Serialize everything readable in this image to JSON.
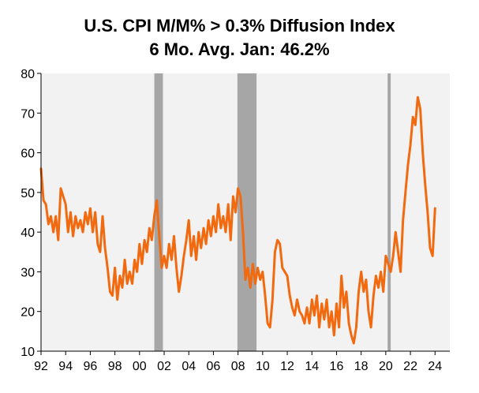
{
  "chart_data": {
    "type": "line",
    "title": "U.S. CPI M/M% > 0.3% Diffusion Index",
    "subtitle": "6 Mo. Avg. Jan: 46.2%",
    "xlabel": "",
    "ylabel": "",
    "ylim": [
      10,
      80
    ],
    "xlim": [
      1992,
      2025.2
    ],
    "yticks": [
      "80",
      "70",
      "60",
      "50",
      "40",
      "30",
      "20",
      "10"
    ],
    "xticks": [
      {
        "label": "92",
        "value": 1992
      },
      {
        "label": "94",
        "value": 1994
      },
      {
        "label": "96",
        "value": 1996
      },
      {
        "label": "98",
        "value": 1998
      },
      {
        "label": "00",
        "value": 2000
      },
      {
        "label": "02",
        "value": 2002
      },
      {
        "label": "04",
        "value": 2004
      },
      {
        "label": "06",
        "value": 2006
      },
      {
        "label": "08",
        "value": 2008
      },
      {
        "label": "10",
        "value": 2010
      },
      {
        "label": "12",
        "value": 2012
      },
      {
        "label": "14",
        "value": 2014
      },
      {
        "label": "16",
        "value": 2016
      },
      {
        "label": "18",
        "value": 2018
      },
      {
        "label": "20",
        "value": 2020
      },
      {
        "label": "22",
        "value": 2022
      },
      {
        "label": "24",
        "value": 2024
      }
    ],
    "recessions": [
      [
        2001.2,
        2001.9
      ],
      [
        2007.95,
        2009.5
      ],
      [
        2020.15,
        2020.4
      ]
    ],
    "grid": false,
    "colors": {
      "line": "#f26a10",
      "recession": "#a6a6a6",
      "plot_bg": "#f2f2f2"
    },
    "series": [
      {
        "x": [
          1992.0,
          1992.2,
          1992.4,
          1992.6,
          1992.8,
          1993.0,
          1993.2,
          1993.4,
          1993.6,
          1993.8,
          1994.0,
          1994.2,
          1994.4,
          1994.6,
          1994.8,
          1995.0,
          1995.2,
          1995.4,
          1995.6,
          1995.8,
          1996.0,
          1996.2,
          1996.4,
          1996.6,
          1996.8,
          1997.0,
          1997.2,
          1997.4,
          1997.6,
          1997.8,
          1998.0,
          1998.2,
          1998.4,
          1998.6,
          1998.8,
          1999.0,
          1999.2,
          1999.4,
          1999.6,
          1999.8,
          2000.0,
          2000.2,
          2000.4,
          2000.6,
          2000.8,
          2001.0,
          2001.2,
          2001.4,
          2001.6,
          2001.8,
          2002.0,
          2002.2,
          2002.4,
          2002.6,
          2002.8,
          2003.0,
          2003.2,
          2003.4,
          2003.6,
          2003.8,
          2004.0,
          2004.2,
          2004.4,
          2004.6,
          2004.8,
          2005.0,
          2005.2,
          2005.4,
          2005.6,
          2005.8,
          2006.0,
          2006.2,
          2006.4,
          2006.6,
          2006.8,
          2007.0,
          2007.2,
          2007.4,
          2007.6,
          2007.8,
          2008.0,
          2008.2,
          2008.4,
          2008.6,
          2008.8,
          2009.0,
          2009.2,
          2009.4,
          2009.6,
          2009.8,
          2010.0,
          2010.2,
          2010.4,
          2010.6,
          2010.8,
          2011.0,
          2011.2,
          2011.4,
          2011.6,
          2011.8,
          2012.0,
          2012.2,
          2012.4,
          2012.6,
          2012.8,
          2013.0,
          2013.2,
          2013.4,
          2013.6,
          2013.8,
          2014.0,
          2014.2,
          2014.4,
          2014.6,
          2014.8,
          2015.0,
          2015.2,
          2015.4,
          2015.6,
          2015.8,
          2016.0,
          2016.2,
          2016.4,
          2016.6,
          2016.8,
          2017.0,
          2017.2,
          2017.4,
          2017.6,
          2017.8,
          2018.0,
          2018.2,
          2018.4,
          2018.6,
          2018.8,
          2019.0,
          2019.2,
          2019.4,
          2019.6,
          2019.8,
          2020.0,
          2020.2,
          2020.4,
          2020.6,
          2020.8,
          2021.0,
          2021.2,
          2021.4,
          2021.6,
          2021.8,
          2022.0,
          2022.2,
          2022.4,
          2022.6,
          2022.8,
          2023.0,
          2023.2,
          2023.4,
          2023.6,
          2023.8,
          2024.0
        ],
        "values": [
          56,
          48,
          47,
          42,
          44,
          40,
          44,
          38,
          51,
          49,
          47,
          40,
          45,
          39,
          44,
          41,
          43,
          40,
          45,
          42,
          46,
          40,
          45,
          37,
          35,
          44,
          36,
          31,
          25,
          24,
          31,
          23,
          29,
          26,
          33,
          27,
          30,
          27,
          33,
          30,
          37,
          32,
          38,
          35,
          41,
          38,
          44,
          48,
          39,
          31,
          34,
          31,
          37,
          33,
          39,
          31,
          25,
          29,
          34,
          38,
          43,
          34,
          39,
          33,
          40,
          36,
          41,
          37,
          43,
          39,
          44,
          40,
          47,
          41,
          44,
          40,
          47,
          38,
          49,
          45,
          51,
          49,
          40,
          28,
          31,
          26,
          32,
          27,
          31,
          28,
          30,
          24,
          17,
          16,
          23,
          35,
          38,
          37,
          31,
          30,
          29,
          24,
          21,
          19,
          23,
          20,
          19,
          17,
          21,
          17,
          23,
          19,
          24,
          16,
          22,
          18,
          23,
          16,
          20,
          14,
          22,
          16,
          29,
          21,
          25,
          17,
          14,
          12,
          16,
          25,
          30,
          25,
          28,
          20,
          16,
          24,
          29,
          26,
          30,
          25,
          34,
          32,
          30,
          34,
          40,
          35,
          30,
          43,
          50,
          57,
          62,
          69,
          67,
          74,
          71,
          60,
          52,
          45,
          36,
          34,
          46
        ]
      }
    ]
  }
}
